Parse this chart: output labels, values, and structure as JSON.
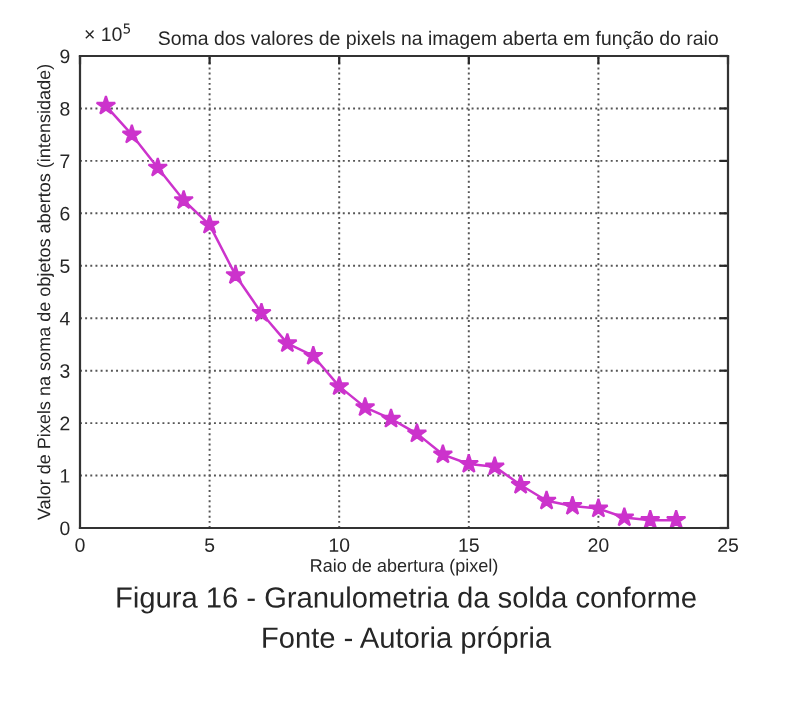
{
  "chart_data": {
    "type": "line",
    "title": "Soma dos valores de pixels na imagem aberta em função do raio",
    "xlabel": "Raio de abertura (pixel)",
    "ylabel": "Valor de Pixels na soma de objetos abertos (intensidade)",
    "annotations": [
      "× 10$^{5}$",
      "Figura 16 - Granulometria da solda conforme",
      "Fonte - Autoria própria"
    ],
    "x": [
      1,
      2,
      3,
      4,
      5,
      6,
      7,
      8,
      9,
      10,
      11,
      12,
      13,
      14,
      15,
      16,
      17,
      18,
      19,
      20,
      21,
      22,
      23
    ],
    "series": [
      {
        "color": "#cc33cc",
        "values": [
          8.05,
          7.5,
          6.87,
          6.25,
          5.78,
          4.82,
          4.1,
          3.52,
          3.28,
          2.7,
          2.3,
          2.08,
          1.8,
          1.4,
          1.22,
          1.17,
          0.82,
          0.52,
          0.42,
          0.37,
          0.2,
          0.15,
          0.15
        ]
      }
    ],
    "xlim": [
      0,
      25
    ],
    "xticks": [
      0,
      5,
      10,
      15,
      20,
      25
    ],
    "ylim": [
      0,
      9
    ],
    "yticks": [
      0,
      1,
      2,
      3,
      4,
      5,
      6,
      7,
      8,
      9
    ],
    "grid": true,
    "marker": "star",
    "line_style": "solid"
  }
}
